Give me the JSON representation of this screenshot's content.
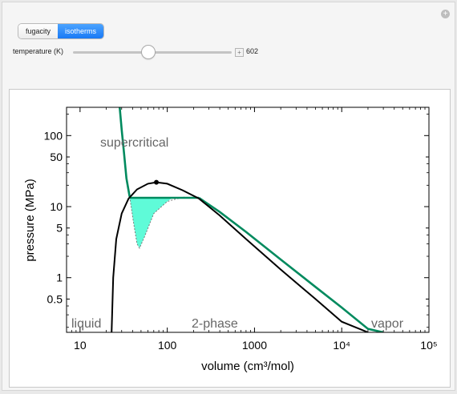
{
  "controls": {
    "toggle": [
      {
        "label": "fugacity",
        "active": false
      },
      {
        "label": "isotherms",
        "active": true
      }
    ],
    "slider": {
      "label": "temperature (K)",
      "value": "602",
      "plus_glyph": "+"
    },
    "corner_glyph": "+"
  },
  "colors": {
    "isotherm": "#008a5e",
    "fill": "#5ffbd8",
    "coexistence": "#000000"
  },
  "chart_data": {
    "type": "line",
    "xlabel": "volume (cm³/mol)",
    "ylabel": "pressure (MPa)",
    "x_scale": "log",
    "y_scale": "log",
    "xlim": [
      7,
      100000
    ],
    "ylim": [
      0.17,
      250
    ],
    "x_ticks": [
      "10",
      "100",
      "1000",
      "10⁴",
      "10⁵"
    ],
    "y_ticks": [
      "100",
      "50",
      "10",
      "5",
      "1",
      "0.5"
    ],
    "regions": [
      "supercritical",
      "liquid",
      "2-phase",
      "vapor"
    ],
    "critical_point": {
      "x": 75,
      "y": 22
    },
    "isotherm_T": 602,
    "series": [
      {
        "role": "coexistence curve",
        "x": [
          23,
          24,
          26,
          30,
          36,
          45,
          60,
          75,
          100,
          150,
          230,
          400,
          800,
          2000,
          5000,
          10000,
          20000
        ],
        "y": [
          0.17,
          1.0,
          3.5,
          8.0,
          13.0,
          17.5,
          21.0,
          22.0,
          21.0,
          17.0,
          13.0,
          7.5,
          3.5,
          1.3,
          0.5,
          0.24,
          0.17
        ]
      },
      {
        "role": "isotherm",
        "x": [
          28.5,
          30,
          32,
          34,
          37,
          41,
          45,
          48,
          55,
          70,
          100,
          150,
          230,
          400,
          800,
          2000,
          5000,
          10000,
          20000,
          30000
        ],
        "y": [
          250,
          120,
          55,
          25,
          13.8,
          6.0,
          3.0,
          2.6,
          3.8,
          8.0,
          11.8,
          13.6,
          13.3,
          8.4,
          4.4,
          1.8,
          0.74,
          0.38,
          0.19,
          0.17
        ]
      },
      {
        "role": "equal-area line",
        "x": [
          37,
          230
        ],
        "y": [
          13.3,
          13.3
        ]
      }
    ]
  }
}
